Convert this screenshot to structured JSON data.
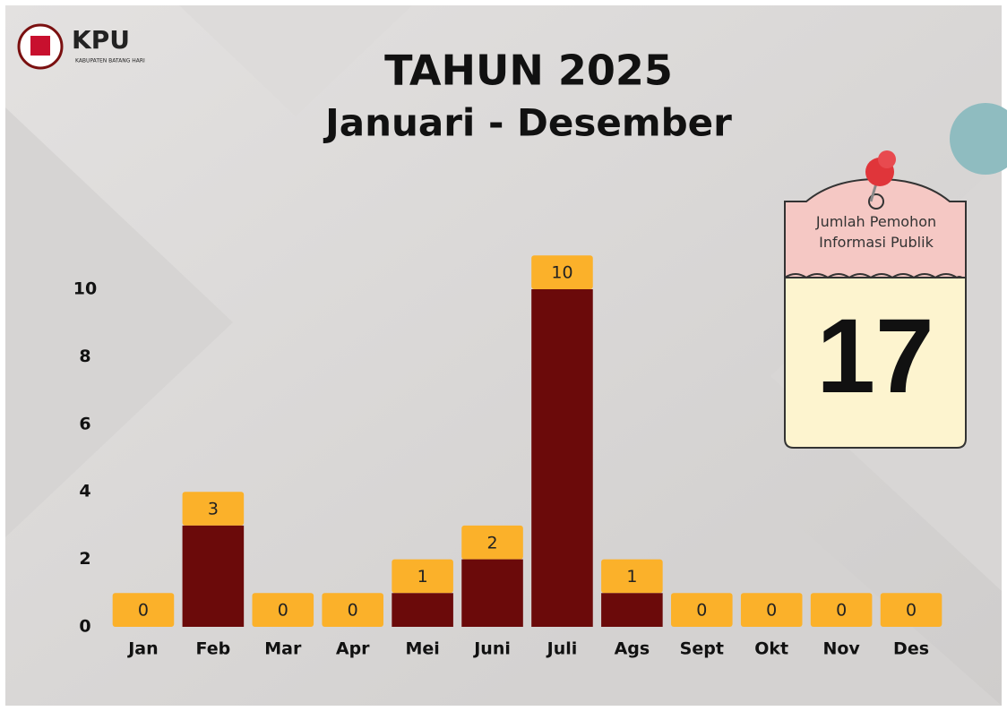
{
  "logo": {
    "name": "KPU",
    "subtitle": "KABUPATEN BATANG HARI"
  },
  "card": {
    "label": "Jumlah Pemohon Informasi Publik",
    "value": 17
  },
  "chart_data": {
    "type": "bar",
    "title": "TAHUN 2025",
    "subtitle": "Januari - Desember",
    "categories": [
      "Jan",
      "Feb",
      "Mar",
      "Apr",
      "Mei",
      "Juni",
      "Juli",
      "Ags",
      "Sept",
      "Okt",
      "Nov",
      "Des"
    ],
    "values": [
      0,
      3,
      0,
      0,
      1,
      2,
      10,
      1,
      0,
      0,
      0,
      0
    ],
    "color": "#6b0a0a",
    "label_color": "#fbb12a",
    "ylim": [
      0,
      10
    ],
    "yticks": [
      0,
      2,
      4,
      6,
      8,
      10
    ],
    "grid": false
  }
}
